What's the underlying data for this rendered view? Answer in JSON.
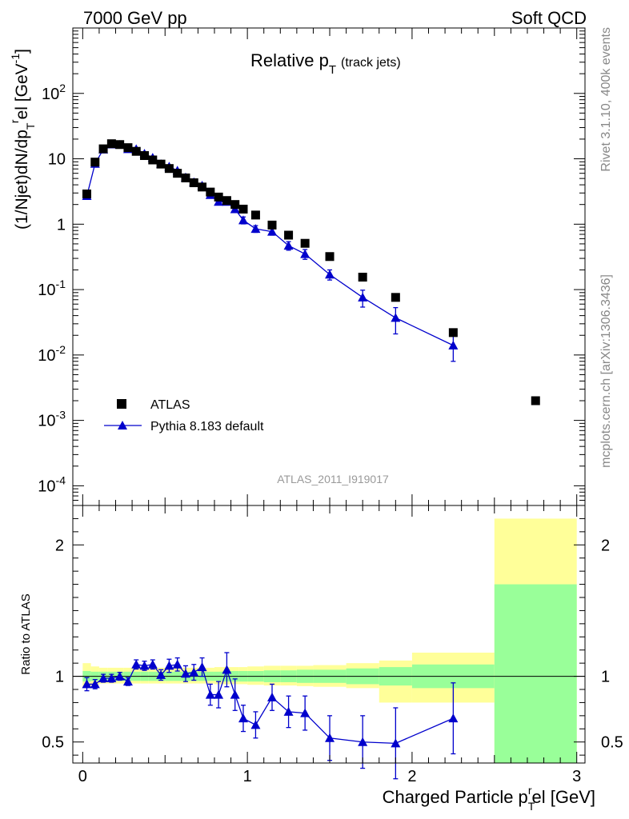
{
  "header": {
    "energy_label": "7000 GeV pp",
    "process_label": "Soft QCD"
  },
  "side_labels": {
    "rivet": "Rivet 3.1.10,  400k events",
    "mcplots": "mcplots.cern.ch [arXiv:1306.3436]"
  },
  "chart_data": [
    {
      "type": "scatter",
      "title": "Relative p",
      "title_sub": "T",
      "title_suffix": "(track jets)",
      "ylabel": "(1/Njet)dN/dp",
      "ylabel_sub_t": "T",
      "ylabel_sup_r": "r",
      "ylabel_mid": "el [GeV",
      "ylabel_sup_m1": "-1",
      "ylabel_end": "]",
      "yscale": "log",
      "ylim": [
        5e-05,
        1000
      ],
      "xlim": [
        -0.06,
        3.05
      ],
      "analysis_label": "ATLAS_2011_I919017",
      "ytick_labels": [
        {
          "value": 0.0001,
          "base": "10",
          "exp": "-4"
        },
        {
          "value": 0.001,
          "base": "10",
          "exp": "-3"
        },
        {
          "value": 0.01,
          "base": "10",
          "exp": "-2"
        },
        {
          "value": 0.1,
          "base": "10",
          "exp": "-1"
        },
        {
          "value": 1,
          "base": "1",
          "exp": ""
        },
        {
          "value": 10,
          "base": "10",
          "exp": ""
        },
        {
          "value": 100,
          "base": "10",
          "exp": "2"
        }
      ],
      "legend": {
        "position": "lower-left",
        "entries": [
          "ATLAS",
          "Pythia 8.183 default"
        ]
      },
      "series": [
        {
          "name": "ATLAS",
          "marker": "square",
          "color": "#000000",
          "x": [
            0.025,
            0.075,
            0.125,
            0.175,
            0.225,
            0.275,
            0.325,
            0.375,
            0.425,
            0.475,
            0.525,
            0.575,
            0.625,
            0.675,
            0.725,
            0.775,
            0.825,
            0.875,
            0.925,
            0.975,
            1.05,
            1.15,
            1.25,
            1.35,
            1.5,
            1.7,
            1.9,
            2.25,
            2.75
          ],
          "y": [
            2.9,
            8.9,
            14.2,
            17.0,
            16.5,
            14.8,
            13.0,
            11.2,
            9.6,
            8.3,
            7.1,
            6.0,
            5.1,
            4.3,
            3.7,
            3.1,
            2.6,
            2.3,
            2.0,
            1.7,
            1.38,
            0.97,
            0.68,
            0.51,
            0.32,
            0.155,
            0.076,
            0.022,
            0.002
          ]
        },
        {
          "name": "Pythia 8.183 default",
          "marker": "triangle",
          "color": "#0000cc",
          "x": [
            0.025,
            0.075,
            0.125,
            0.175,
            0.225,
            0.275,
            0.325,
            0.375,
            0.425,
            0.475,
            0.525,
            0.575,
            0.625,
            0.675,
            0.725,
            0.775,
            0.825,
            0.875,
            0.925,
            0.975,
            1.05,
            1.15,
            1.25,
            1.35,
            1.5,
            1.7,
            1.9,
            2.25
          ],
          "y": [
            2.7,
            8.4,
            13.9,
            16.6,
            16.4,
            14.1,
            14.1,
            12.0,
            10.4,
            8.3,
            7.6,
            6.6,
            5.2,
            4.4,
            3.9,
            2.8,
            2.2,
            2.2,
            1.7,
            1.15,
            0.85,
            0.77,
            0.47,
            0.35,
            0.17,
            0.076,
            0.037,
            0.014
          ],
          "yerr": [
            0.15,
            0.3,
            0.4,
            0.4,
            0.4,
            0.4,
            0.4,
            0.35,
            0.3,
            0.3,
            0.3,
            0.3,
            0.25,
            0.25,
            0.25,
            0.2,
            0.2,
            0.2,
            0.18,
            0.14,
            0.1,
            0.09,
            0.07,
            0.06,
            0.03,
            0.022,
            0.016,
            0.006
          ]
        }
      ]
    },
    {
      "type": "line",
      "ylabel": "Ratio to ATLAS",
      "xlabel": "Charged Particle p",
      "xlabel_sub": "T",
      "xlabel_sup": "r",
      "xlabel_end": "el [GeV]",
      "xlim": [
        -0.06,
        3.05
      ],
      "ylim": [
        0.34,
        2.3
      ],
      "xticks": [
        0,
        1,
        2,
        3
      ],
      "xtick_labels": [
        "0",
        "1",
        "2",
        "3"
      ],
      "yticks": [
        0.5,
        1,
        2
      ],
      "ytick_labels": [
        "0.5",
        "1",
        "2"
      ],
      "uncertainty_bands": {
        "colors": {
          "stat": "#99ff99",
          "total": "#ffff99"
        },
        "edges": [
          0,
          0.05,
          0.1,
          0.15,
          0.2,
          0.25,
          0.3,
          0.35,
          0.4,
          0.45,
          0.5,
          0.55,
          0.6,
          0.65,
          0.7,
          0.75,
          0.8,
          0.85,
          0.9,
          0.95,
          1.0,
          1.1,
          1.2,
          1.3,
          1.4,
          1.6,
          1.8,
          2.0,
          2.5,
          3.0
        ],
        "stat_half_width": [
          0.04,
          0.035,
          0.035,
          0.035,
          0.035,
          0.035,
          0.035,
          0.035,
          0.035,
          0.035,
          0.035,
          0.035,
          0.035,
          0.035,
          0.035,
          0.035,
          0.035,
          0.04,
          0.04,
          0.04,
          0.04,
          0.045,
          0.045,
          0.05,
          0.05,
          0.06,
          0.07,
          0.09,
          0.7
        ],
        "total_lo": [
          0.92,
          0.935,
          0.945,
          0.945,
          0.945,
          0.945,
          0.945,
          0.945,
          0.945,
          0.945,
          0.945,
          0.945,
          0.945,
          0.945,
          0.945,
          0.945,
          0.94,
          0.94,
          0.94,
          0.94,
          0.935,
          0.93,
          0.93,
          0.925,
          0.92,
          0.91,
          0.8,
          0.8,
          0.34
        ],
        "total_hi": [
          1.1,
          1.075,
          1.065,
          1.065,
          1.065,
          1.065,
          1.065,
          1.065,
          1.065,
          1.065,
          1.065,
          1.065,
          1.065,
          1.065,
          1.065,
          1.065,
          1.07,
          1.07,
          1.07,
          1.07,
          1.075,
          1.08,
          1.08,
          1.08,
          1.085,
          1.1,
          1.12,
          1.18,
          2.2
        ]
      },
      "series": [
        {
          "name": "Pythia 8.183 default / ATLAS",
          "marker": "triangle",
          "color": "#0000cc",
          "x": [
            0.025,
            0.075,
            0.125,
            0.175,
            0.225,
            0.275,
            0.325,
            0.375,
            0.425,
            0.475,
            0.525,
            0.575,
            0.625,
            0.675,
            0.725,
            0.775,
            0.825,
            0.875,
            0.925,
            0.975,
            1.05,
            1.15,
            1.25,
            1.35,
            1.5,
            1.7,
            1.9,
            2.25
          ],
          "y": [
            0.94,
            0.94,
            0.985,
            0.985,
            1.0,
            0.96,
            1.09,
            1.08,
            1.09,
            1.01,
            1.08,
            1.09,
            1.02,
            1.03,
            1.07,
            0.86,
            0.86,
            1.05,
            0.86,
            0.68,
            0.63,
            0.84,
            0.73,
            0.72,
            0.53,
            0.5,
            0.49,
            0.68
          ],
          "yerr": [
            0.05,
            0.035,
            0.03,
            0.03,
            0.03,
            0.03,
            0.035,
            0.035,
            0.035,
            0.04,
            0.05,
            0.05,
            0.06,
            0.06,
            0.07,
            0.08,
            0.1,
            0.13,
            0.12,
            0.1,
            0.1,
            0.1,
            0.12,
            0.13,
            0.17,
            0.2,
            0.27,
            0.27
          ]
        }
      ]
    }
  ]
}
